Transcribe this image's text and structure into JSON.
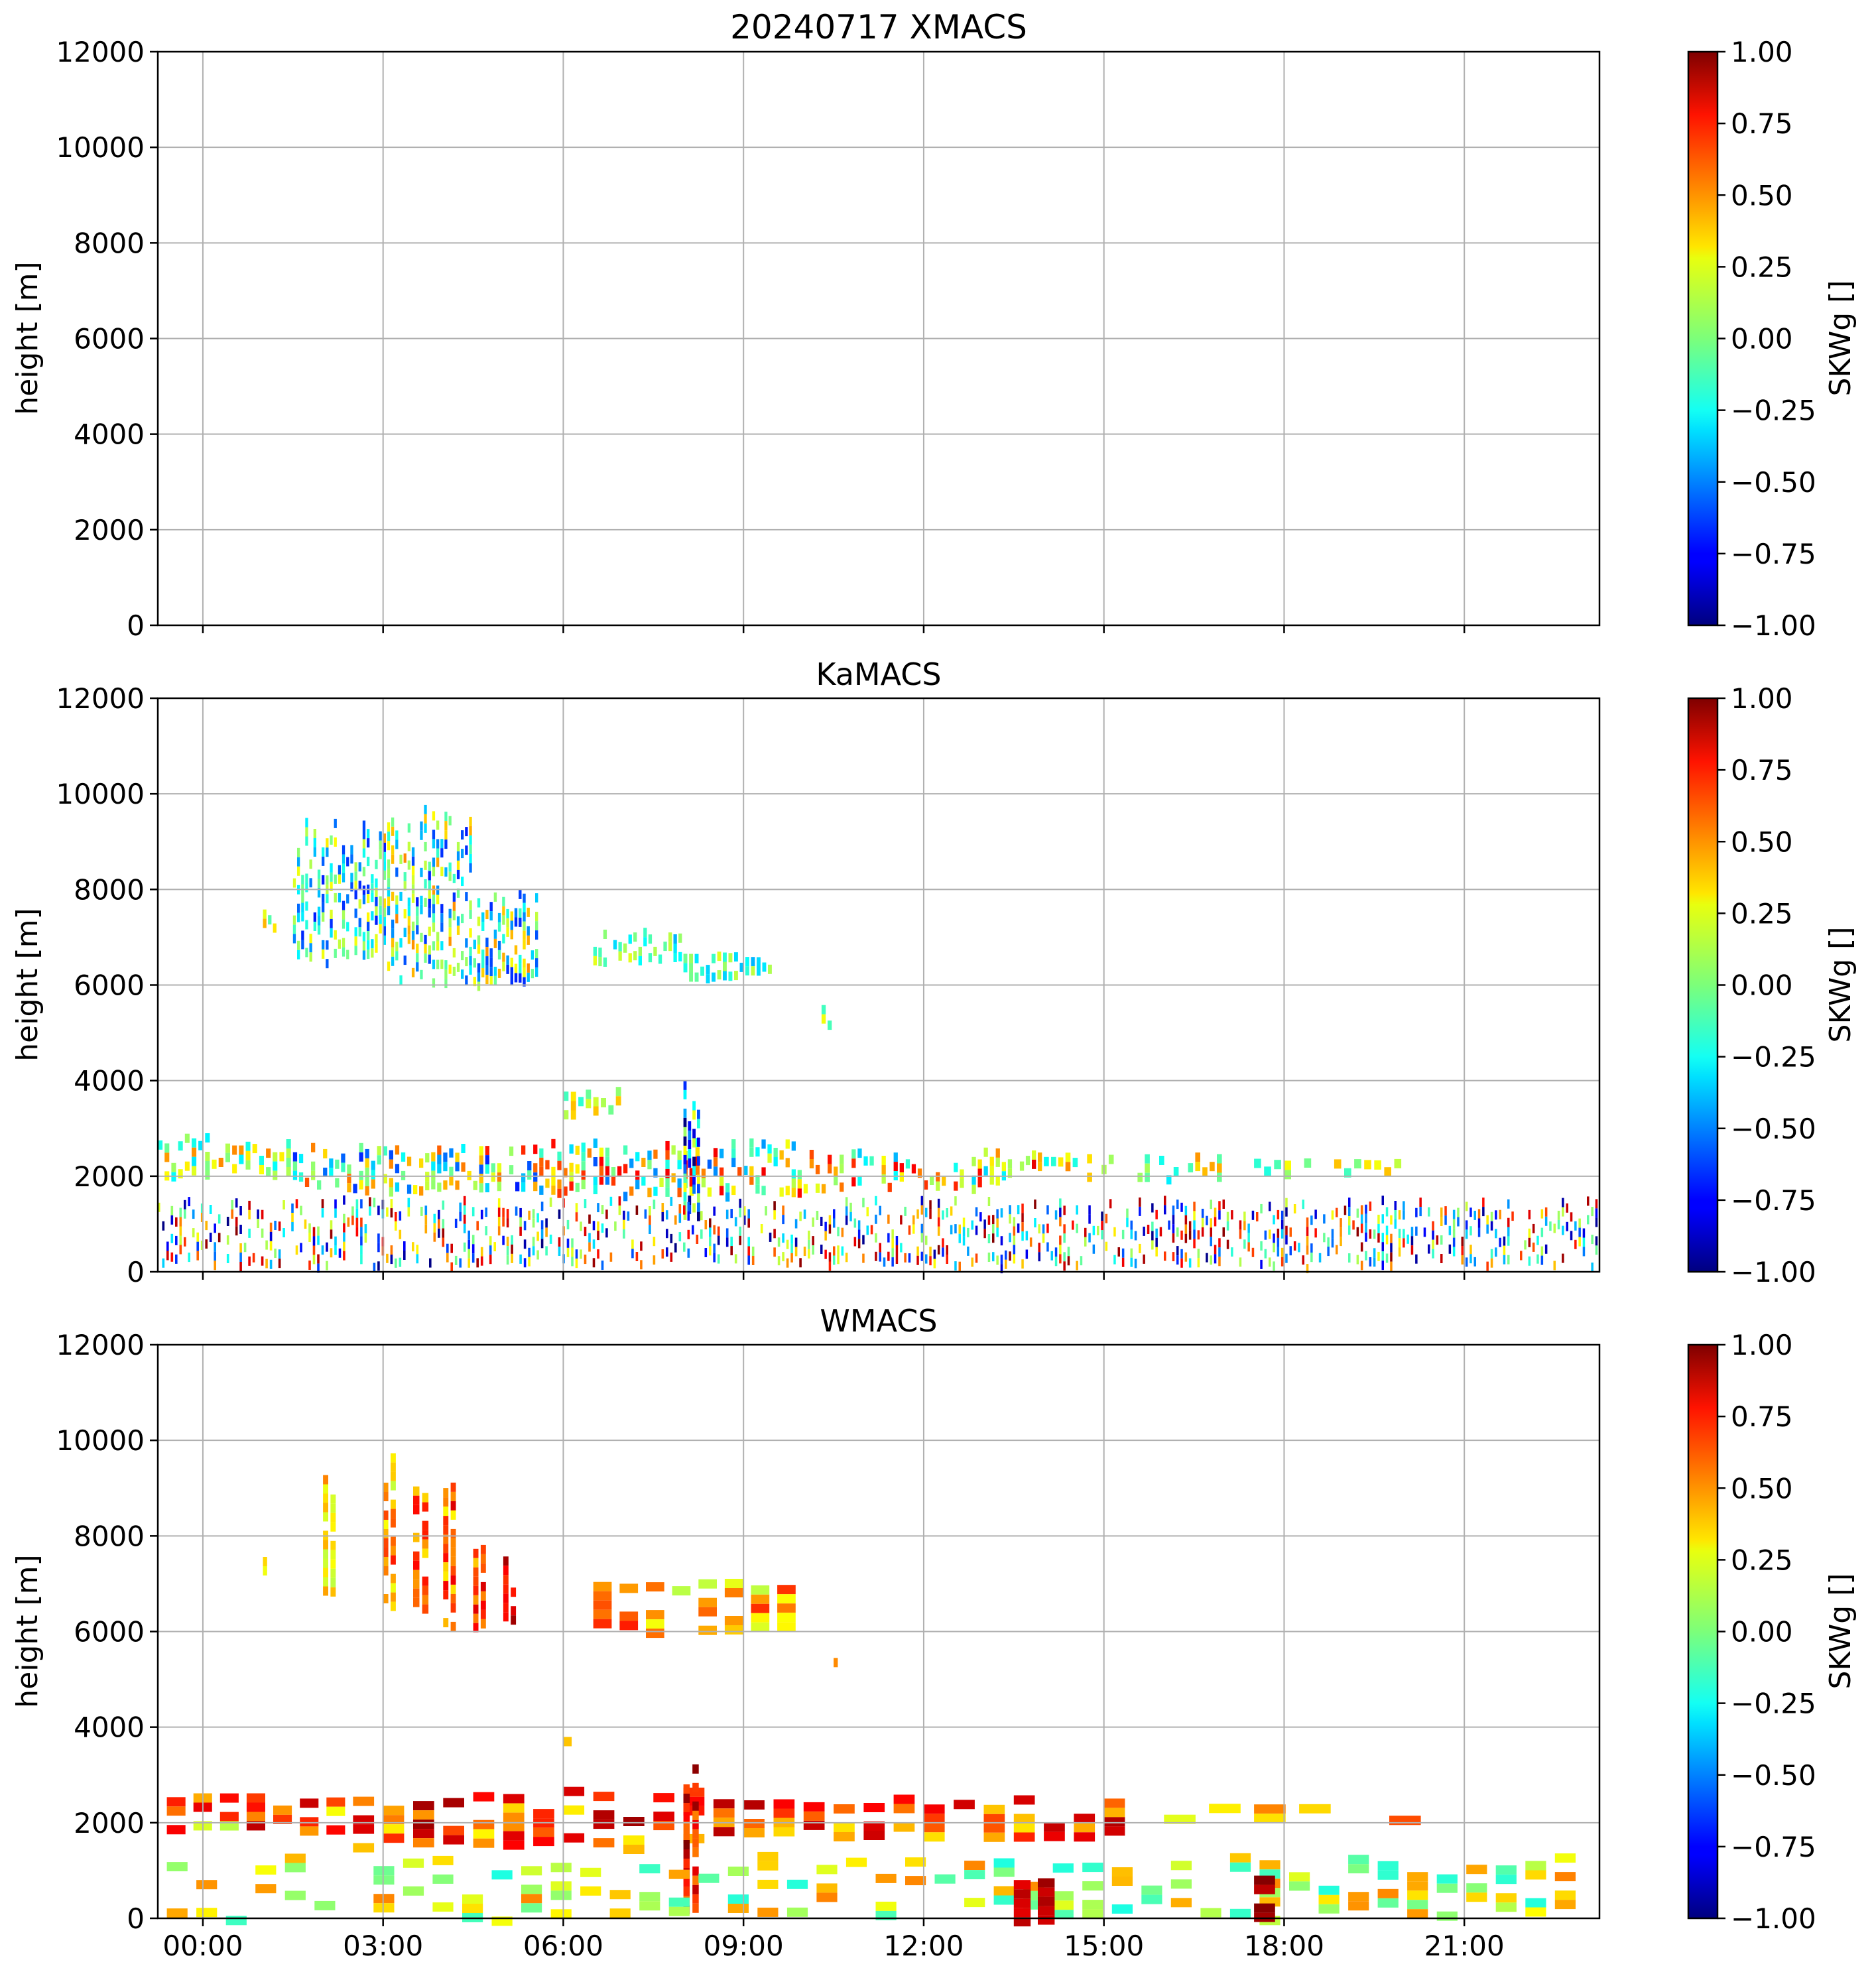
{
  "figure": {
    "panels": [
      {
        "title": "20240717 XMACS",
        "ylabel": "height [m]",
        "cbar_label": "SKWg []"
      },
      {
        "title": "KaMACS",
        "ylabel": "height [m]",
        "cbar_label": "SKWg []"
      },
      {
        "title": "WMACS",
        "ylabel": "height [m]",
        "cbar_label": "SKWg []"
      }
    ]
  },
  "chart_data": [
    {
      "type": "heatmap",
      "title": "20240717 XMACS",
      "xlabel": "",
      "ylabel": "height [m]",
      "x_range_hours": [
        -0.75,
        23.25
      ],
      "xticks": [
        0,
        3,
        6,
        9,
        12,
        15,
        18,
        21
      ],
      "xtick_labels": [
        "00:00",
        "03:00",
        "06:00",
        "09:00",
        "12:00",
        "15:00",
        "18:00",
        "21:00"
      ],
      "ylim": [
        0,
        12000
      ],
      "yticks": [
        0,
        2000,
        4000,
        6000,
        8000,
        10000,
        12000
      ],
      "ytick_labels": [
        "0",
        "2000",
        "4000",
        "6000",
        "8000",
        "10000",
        "12000"
      ],
      "grid": true,
      "colorbar": {
        "label": "SKWg []",
        "colormap": "jet",
        "vmin": -1.0,
        "vmax": 1.0,
        "ticks": [
          -1.0,
          -0.75,
          -0.5,
          -0.25,
          0.0,
          0.25,
          0.5,
          0.75,
          1.0
        ],
        "tick_labels": [
          "−1.00",
          "−0.75",
          "−0.50",
          "−0.25",
          "0.00",
          "0.25",
          "0.50",
          "0.75",
          "1.00"
        ]
      },
      "echo_regions": []
    },
    {
      "type": "heatmap",
      "title": "KaMACS",
      "xlabel": "",
      "ylabel": "height [m]",
      "x_range_hours": [
        -0.75,
        23.25
      ],
      "xticks": [
        0,
        3,
        6,
        9,
        12,
        15,
        18,
        21
      ],
      "xtick_labels": [
        "00:00",
        "03:00",
        "06:00",
        "09:00",
        "12:00",
        "15:00",
        "18:00",
        "21:00"
      ],
      "ylim": [
        0,
        12000
      ],
      "yticks": [
        0,
        2000,
        4000,
        6000,
        8000,
        10000,
        12000
      ],
      "ytick_labels": [
        "0",
        "2000",
        "4000",
        "6000",
        "8000",
        "10000",
        "12000"
      ],
      "grid": true,
      "colorbar": {
        "label": "SKWg []",
        "colormap": "jet",
        "vmin": -1.0,
        "vmax": 1.0,
        "ticks": [
          -1.0,
          -0.75,
          -0.5,
          -0.25,
          0.0,
          0.25,
          0.5,
          0.75,
          1.0
        ],
        "tick_labels": [
          "−1.00",
          "−0.75",
          "−0.50",
          "−0.25",
          "0.00",
          "0.25",
          "0.50",
          "0.75",
          "1.00"
        ]
      },
      "echo_regions": [
        {
          "t0": 1.5,
          "t1": 3.0,
          "h0": 6500,
          "h1": 9500,
          "skw": -0.2,
          "spread": 0.5,
          "density": 0.5,
          "stripes": 22
        },
        {
          "t0": 3.0,
          "t1": 4.5,
          "h0": 6000,
          "h1": 9800,
          "skw": -0.1,
          "spread": 0.6,
          "density": 0.5,
          "stripes": 22
        },
        {
          "t0": 4.5,
          "t1": 5.6,
          "h0": 6000,
          "h1": 8000,
          "skw": -0.1,
          "spread": 0.6,
          "density": 0.6,
          "stripes": 16
        },
        {
          "t0": 1.0,
          "t1": 1.25,
          "h0": 7200,
          "h1": 7700,
          "skw": 0.1,
          "spread": 0.3,
          "density": 0.6,
          "stripes": 3
        },
        {
          "t0": 6.5,
          "t1": 8.0,
          "h0": 6500,
          "h1": 7200,
          "skw": -0.1,
          "spread": 0.3,
          "density": 0.6,
          "stripes": 18
        },
        {
          "t0": 8.0,
          "t1": 9.5,
          "h0": 6200,
          "h1": 6700,
          "skw": -0.1,
          "spread": 0.3,
          "density": 0.6,
          "stripes": 16
        },
        {
          "t0": 10.2,
          "t1": 10.6,
          "h0": 5200,
          "h1": 5700,
          "skw": 0.0,
          "spread": 0.3,
          "density": 0.6,
          "stripes": 4
        },
        {
          "t0": -0.75,
          "t1": 1.5,
          "h0": 2000,
          "h1": 2900,
          "skw": 0.1,
          "spread": 0.4,
          "density": 0.45,
          "stripes": 20
        },
        {
          "t0": 1.5,
          "t1": 5.5,
          "h0": 1700,
          "h1": 2700,
          "skw": 0.0,
          "spread": 0.7,
          "density": 0.55,
          "stripes": 40
        },
        {
          "t0": 5.5,
          "t1": 10.0,
          "h0": 1600,
          "h1": 2800,
          "skw": 0.1,
          "spread": 0.7,
          "density": 0.55,
          "stripes": 45
        },
        {
          "t0": 10.0,
          "t1": 14.0,
          "h0": 1800,
          "h1": 2600,
          "skw": 0.2,
          "spread": 0.6,
          "density": 0.45,
          "stripes": 40
        },
        {
          "t0": 14.0,
          "t1": 17.0,
          "h0": 2000,
          "h1": 2500,
          "skw": 0.1,
          "spread": 0.4,
          "density": 0.4,
          "stripes": 25
        },
        {
          "t0": 17.5,
          "t1": 20.0,
          "h0": 2100,
          "h1": 2400,
          "skw": 0.1,
          "spread": 0.3,
          "density": 0.3,
          "stripes": 15
        },
        {
          "t0": 6.0,
          "t1": 7.0,
          "h0": 3300,
          "h1": 3900,
          "skw": 0.1,
          "spread": 0.3,
          "density": 0.5,
          "stripes": 8
        },
        {
          "t0": 8.0,
          "t1": 8.3,
          "h0": 1000,
          "h1": 4000,
          "skw": -0.4,
          "spread": 0.7,
          "density": 0.7,
          "stripes": 4
        },
        {
          "t0": -0.75,
          "t1": 10.0,
          "h0": 150,
          "h1": 1600,
          "skw": 0.0,
          "spread": 1.0,
          "density": 0.38,
          "stripes": 150
        },
        {
          "t0": 10.0,
          "t1": 23.25,
          "h0": 150,
          "h1": 1600,
          "skw": 0.0,
          "spread": 1.0,
          "density": 0.38,
          "stripes": 190
        }
      ]
    },
    {
      "type": "heatmap",
      "title": "WMACS",
      "xlabel": "",
      "ylabel": "height [m]",
      "x_range_hours": [
        -0.75,
        23.25
      ],
      "xticks": [
        0,
        3,
        6,
        9,
        12,
        15,
        18,
        21
      ],
      "xtick_labels": [
        "00:00",
        "03:00",
        "06:00",
        "09:00",
        "12:00",
        "15:00",
        "18:00",
        "21:00"
      ],
      "ylim": [
        0,
        12000
      ],
      "yticks": [
        0,
        2000,
        4000,
        6000,
        8000,
        10000,
        12000
      ],
      "ytick_labels": [
        "0",
        "2000",
        "4000",
        "6000",
        "8000",
        "10000",
        "12000"
      ],
      "grid": true,
      "colorbar": {
        "label": "SKWg []",
        "colormap": "jet",
        "vmin": -1.0,
        "vmax": 1.0,
        "ticks": [
          -1.0,
          -0.75,
          -0.5,
          -0.25,
          0.0,
          0.25,
          0.5,
          0.75,
          1.0
        ],
        "tick_labels": [
          "−1.00",
          "−0.75",
          "−0.50",
          "−0.25",
          "0.00",
          "0.25",
          "0.50",
          "0.75",
          "1.00"
        ]
      },
      "echo_regions": [
        {
          "t0": 1.0,
          "t1": 1.1,
          "h0": 7200,
          "h1": 7600,
          "skw": 0.25,
          "spread": 0.1,
          "density": 0.8,
          "stripes": 1
        },
        {
          "t0": 2.0,
          "t1": 2.25,
          "h0": 6600,
          "h1": 9400,
          "skw": 0.3,
          "spread": 0.2,
          "density": 0.8,
          "stripes": 2
        },
        {
          "t0": 3.0,
          "t1": 3.25,
          "h0": 6400,
          "h1": 9900,
          "skw": 0.4,
          "spread": 0.3,
          "density": 0.8,
          "stripes": 2
        },
        {
          "t0": 3.5,
          "t1": 3.8,
          "h0": 6200,
          "h1": 9700,
          "skw": 0.5,
          "spread": 0.3,
          "density": 0.8,
          "stripes": 2
        },
        {
          "t0": 4.0,
          "t1": 4.25,
          "h0": 6000,
          "h1": 9500,
          "skw": 0.55,
          "spread": 0.3,
          "density": 0.8,
          "stripes": 2
        },
        {
          "t0": 4.5,
          "t1": 4.75,
          "h0": 5900,
          "h1": 8300,
          "skw": 0.65,
          "spread": 0.3,
          "density": 0.8,
          "stripes": 2
        },
        {
          "t0": 5.0,
          "t1": 5.25,
          "h0": 6200,
          "h1": 7800,
          "skw": 0.75,
          "spread": 0.2,
          "density": 0.8,
          "stripes": 2
        },
        {
          "t0": 6.5,
          "t1": 10.0,
          "h0": 6000,
          "h1": 7200,
          "skw": 0.4,
          "spread": 0.3,
          "density": 0.7,
          "stripes": 8
        },
        {
          "t0": 10.5,
          "t1": 10.6,
          "h0": 5200,
          "h1": 5500,
          "skw": 0.3,
          "spread": 0.2,
          "density": 0.7,
          "stripes": 1
        },
        {
          "t0": 6.0,
          "t1": 6.2,
          "h0": 3700,
          "h1": 3800,
          "skw": 0.4,
          "spread": 0.1,
          "density": 0.8,
          "stripes": 1
        },
        {
          "t0": -0.6,
          "t1": 2.5,
          "h0": 1800,
          "h1": 2800,
          "skw": 0.5,
          "spread": 0.4,
          "density": 0.7,
          "stripes": 7
        },
        {
          "t0": 2.5,
          "t1": 8.5,
          "h0": 1500,
          "h1": 2800,
          "skw": 0.6,
          "spread": 0.35,
          "density": 0.75,
          "stripes": 12
        },
        {
          "t0": 8.0,
          "t1": 8.3,
          "h0": 0,
          "h1": 3600,
          "skw": 0.75,
          "spread": 0.25,
          "density": 0.85,
          "stripes": 2
        },
        {
          "t0": 8.5,
          "t1": 15.5,
          "h0": 1700,
          "h1": 2600,
          "skw": 0.6,
          "spread": 0.3,
          "density": 0.7,
          "stripes": 14
        },
        {
          "t0": 16.0,
          "t1": 20.5,
          "h0": 2100,
          "h1": 2400,
          "skw": 0.4,
          "spread": 0.3,
          "density": 0.5,
          "stripes": 6
        },
        {
          "t0": -0.6,
          "t1": 23.0,
          "h0": 0,
          "h1": 1400,
          "skw": 0.15,
          "spread": 0.35,
          "density": 0.45,
          "stripes": 48
        },
        {
          "t0": 13.5,
          "t1": 14.3,
          "h0": 0,
          "h1": 1000,
          "skw": 0.9,
          "spread": 0.1,
          "density": 0.8,
          "stripes": 2
        },
        {
          "t0": 17.5,
          "t1": 18.0,
          "h0": 0,
          "h1": 900,
          "skw": 0.9,
          "spread": 0.1,
          "density": 0.8,
          "stripes": 1
        }
      ]
    }
  ]
}
